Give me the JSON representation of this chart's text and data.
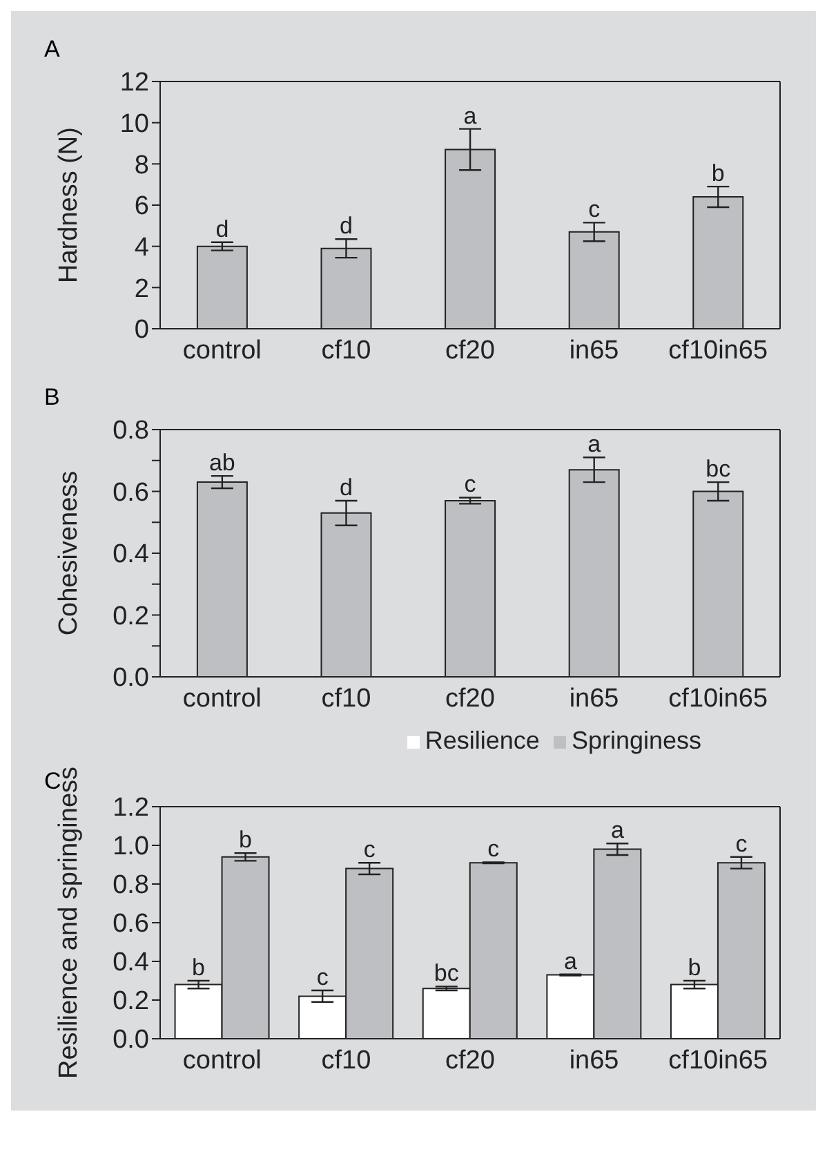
{
  "chart_data": [
    {
      "type": "bar",
      "title": "A",
      "ylabel": "Hardness (N)",
      "categories": [
        "control",
        "cf10",
        "cf20",
        "in65",
        "cf10in65"
      ],
      "ylim": [
        0,
        12
      ],
      "yticks": [
        0,
        2,
        4,
        6,
        8,
        10,
        12
      ],
      "legend": false,
      "series": [
        {
          "color": "#bebfc3",
          "values": [
            4.0,
            3.9,
            8.7,
            4.7,
            6.4
          ],
          "errors": [
            0.2,
            0.45,
            1.0,
            0.45,
            0.5
          ],
          "value_labels": [
            "d",
            "d",
            "a",
            "c",
            "b"
          ]
        }
      ]
    },
    {
      "type": "bar",
      "title": "B",
      "ylabel": "Cohesiveness",
      "categories": [
        "control",
        "cf10",
        "cf20",
        "in65",
        "cf10in65"
      ],
      "ylim": [
        0,
        0.8
      ],
      "yticks": [
        {
          "value": 0,
          "label": "0.0"
        },
        {
          "value": 0.1,
          "label": null
        },
        0.2,
        {
          "value": 0.3,
          "label": null
        },
        0.4,
        {
          "value": 0.5,
          "label": null
        },
        0.6,
        {
          "value": 0.7,
          "label": null
        },
        0.8
      ],
      "legend": false,
      "series": [
        {
          "color": "#bebfc3",
          "values": [
            0.63,
            0.53,
            0.57,
            0.67,
            0.6
          ],
          "errors": [
            0.02,
            0.04,
            0.01,
            0.04,
            0.03
          ],
          "value_labels": [
            "ab",
            "d",
            "c",
            "a",
            "bc"
          ]
        }
      ]
    },
    {
      "type": "bar",
      "title": "C",
      "ylabel": "Resilience and springiness",
      "categories": [
        "control",
        "cf10",
        "cf20",
        "in65",
        "cf10in65"
      ],
      "ylim": [
        0,
        1.2
      ],
      "yticks": [
        {
          "value": 0,
          "label": "0.0"
        },
        0.2,
        0.4,
        0.6,
        0.8,
        {
          "value": 1,
          "label": "1.0"
        },
        1.2
      ],
      "legend": "top right",
      "series": [
        {
          "name": "Resilience",
          "color": "#ffffff",
          "values": [
            0.28,
            0.22,
            0.26,
            0.33,
            0.28
          ],
          "errors": [
            0.02,
            0.03,
            0.01,
            0.003,
            0.02
          ],
          "value_labels": [
            "b",
            "c",
            "bc",
            "a",
            "b"
          ]
        },
        {
          "name": "Springiness",
          "color": "#bebfc3",
          "values": [
            0.94,
            0.88,
            0.91,
            0.98,
            0.91
          ],
          "errors": [
            0.02,
            0.03,
            0.003,
            0.03,
            0.03
          ],
          "value_labels": [
            "b",
            "c",
            "c",
            "a",
            "c"
          ]
        }
      ]
    }
  ]
}
